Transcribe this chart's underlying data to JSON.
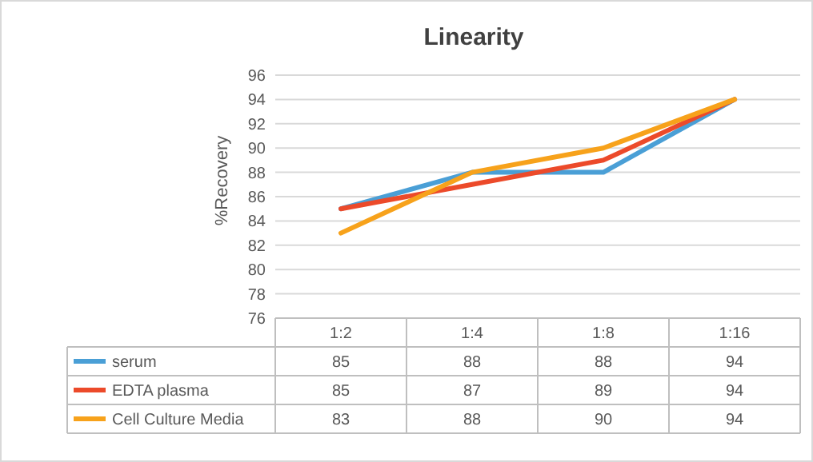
{
  "chart_data": {
    "type": "line",
    "title": "Linearity",
    "ylabel": "%Recovery",
    "categories": [
      "1:2",
      "1:4",
      "1:8",
      "1:16"
    ],
    "series": [
      {
        "name": "serum",
        "color": "#4a9fd6",
        "values": [
          85,
          88,
          88,
          94
        ]
      },
      {
        "name": "EDTA plasma",
        "color": "#ec4a2a",
        "values": [
          85,
          87,
          89,
          94
        ]
      },
      {
        "name": "Cell Culture Media",
        "color": "#f7a21b",
        "values": [
          83,
          88,
          90,
          94
        ]
      }
    ],
    "ylim": [
      76,
      96
    ],
    "yticks": [
      76,
      78,
      80,
      82,
      84,
      86,
      88,
      90,
      92,
      94,
      96
    ],
    "grid": "y",
    "legend": "bottom",
    "data_labels": true,
    "marker": "none",
    "line_style": "solid"
  }
}
